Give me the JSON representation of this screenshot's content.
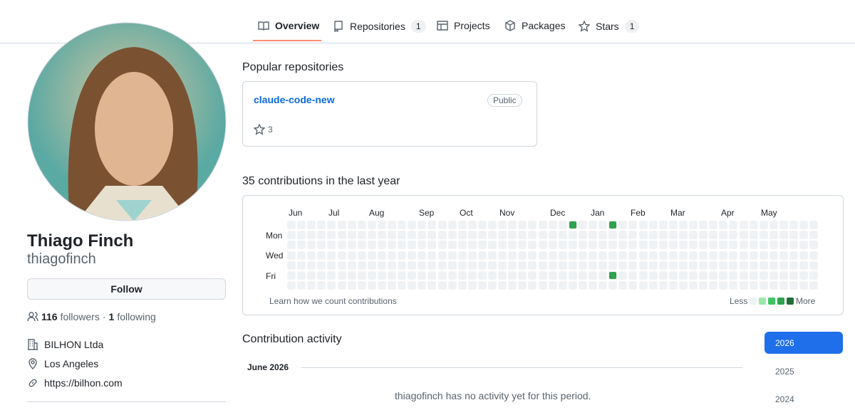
{
  "nav": {
    "tabs": [
      {
        "label": "Overview"
      },
      {
        "label": "Repositories",
        "count": 1
      },
      {
        "label": "Projects"
      },
      {
        "label": "Packages"
      },
      {
        "label": "Stars",
        "count": 1
      }
    ]
  },
  "profile": {
    "name": "Thiago Finch",
    "username": "thiagofinch",
    "follow_button": "Follow",
    "followers": 116,
    "followers_label": "followers",
    "separator": "·",
    "following": 1,
    "following_label": "following",
    "company": "BILHON Ltda",
    "location": "Los Angeles",
    "website": "https://bilhon.com"
  },
  "popular": {
    "title": "Popular repositories",
    "repos": [
      {
        "name": "claude-code-new",
        "visibility": "Public",
        "stars": 3
      }
    ]
  },
  "contributions": {
    "title": "35 contributions in the last year",
    "months": [
      "Jun",
      "Jul",
      "Aug",
      "Sep",
      "Oct",
      "Nov",
      "Dec",
      "Jan",
      "Feb",
      "Mar",
      "Apr",
      "May"
    ],
    "days": [
      "Mon",
      "Wed",
      "Fri"
    ],
    "learn": "Learn how we count contributions",
    "less": "Less",
    "more": "More"
  },
  "activity": {
    "title": "Contribution activity",
    "period": "June 2026",
    "empty": "thiagofinch has no activity yet for this period.",
    "years": [
      "2026",
      "2025",
      "2024"
    ]
  }
}
